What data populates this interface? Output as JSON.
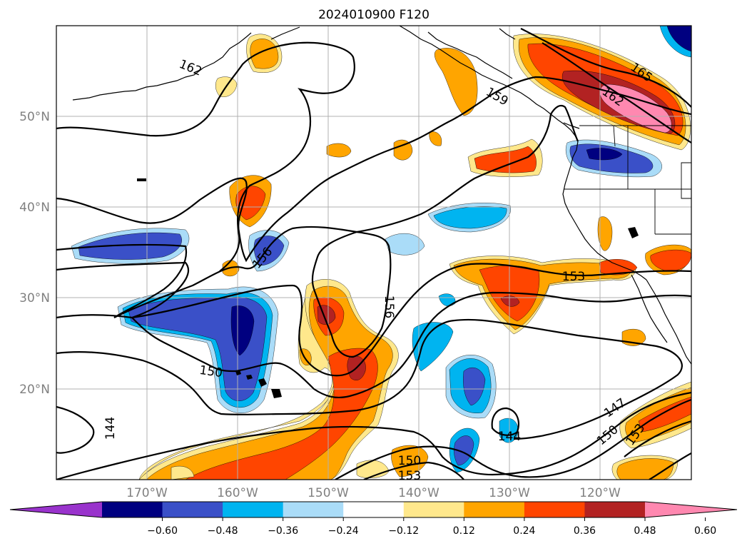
{
  "title": "2024010900 F120",
  "map": {
    "lat_labels": [
      "50°N",
      "40°N",
      "30°N",
      "20°N"
    ],
    "lon_labels": [
      "170°W",
      "160°W",
      "150°W",
      "140°W",
      "130°W",
      "120°W"
    ],
    "grid": true,
    "contour_color": "#000000",
    "coastline_color": "#000000"
  },
  "colorbar": {
    "ticks": [
      "−0.60",
      "−0.48",
      "−0.36",
      "−0.24",
      "−0.12",
      "0.12",
      "0.24",
      "0.36",
      "0.48",
      "0.60"
    ],
    "colors": [
      "#9933cc",
      "#000080",
      "#3a50c8",
      "#00b4f0",
      "#aadcf8",
      "#ffffff",
      "#ffe88c",
      "#ffa500",
      "#ff4500",
      "#b22222",
      "#ff88b0"
    ],
    "extend": "both"
  },
  "contour_labels": [
    "162",
    "159",
    "165",
    "162",
    "156",
    "156",
    "153",
    "150",
    "144",
    "144",
    "147",
    "150",
    "153",
    "150",
    "153"
  ],
  "fill_colors": {
    "dark_blue": "#000080",
    "blue": "#3a50c8",
    "sky": "#00b4f0",
    "light_blue": "#aadcf8",
    "yellow": "#ffe88c",
    "orange": "#ffa500",
    "red_orange": "#ff4500",
    "dark_red": "#b22222",
    "pink": "#ff88b0"
  }
}
